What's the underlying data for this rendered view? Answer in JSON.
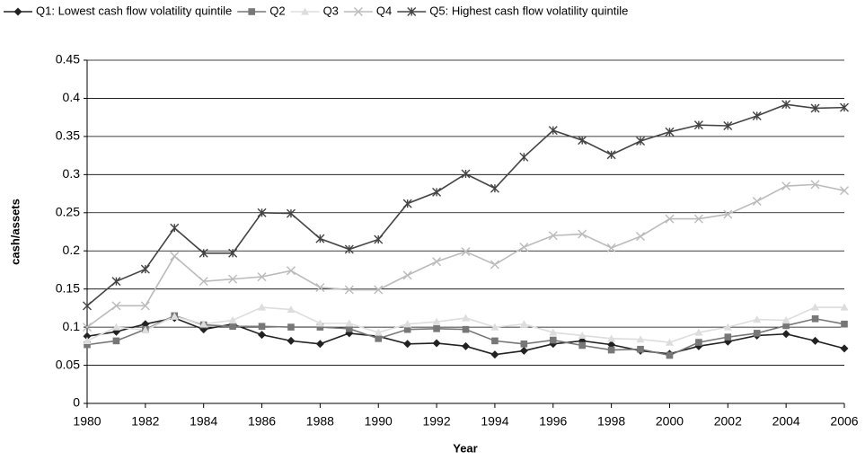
{
  "chart_data": {
    "type": "line",
    "x_label": "Year",
    "y_label": "cash/assets",
    "x": [
      1980,
      1981,
      1982,
      1983,
      1984,
      1985,
      1986,
      1987,
      1988,
      1989,
      1990,
      1991,
      1992,
      1993,
      1994,
      1995,
      1996,
      1997,
      1998,
      1999,
      2000,
      2001,
      2002,
      2003,
      2004,
      2005,
      2006
    ],
    "xlim": [
      1980,
      2006
    ],
    "xticks": [
      1980,
      1982,
      1984,
      1986,
      1988,
      1990,
      1992,
      1994,
      1996,
      1998,
      2000,
      2002,
      2004,
      2006
    ],
    "ylim": [
      0,
      0.45
    ],
    "yticks": [
      0,
      0.05,
      0.1,
      0.15,
      0.2,
      0.25,
      0.3,
      0.35,
      0.4,
      0.45
    ],
    "grid": true,
    "legend": "top",
    "series": [
      {
        "name": "Q1: Lowest cash flow volatility quintile",
        "color": "#222222",
        "marker": "diamond",
        "values": [
          0.088,
          0.094,
          0.104,
          0.112,
          0.097,
          0.104,
          0.09,
          0.082,
          0.078,
          0.092,
          0.088,
          0.078,
          0.079,
          0.075,
          0.064,
          0.069,
          0.078,
          0.082,
          0.077,
          0.069,
          0.065,
          0.075,
          0.081,
          0.089,
          0.091,
          0.082,
          0.072
        ]
      },
      {
        "name": "Q2",
        "color": "#777777",
        "marker": "square",
        "values": [
          0.077,
          0.082,
          0.097,
          0.115,
          0.103,
          0.101,
          0.101,
          0.1,
          0.1,
          0.098,
          0.085,
          0.097,
          0.098,
          0.097,
          0.082,
          0.078,
          0.083,
          0.076,
          0.07,
          0.071,
          0.063,
          0.08,
          0.087,
          0.092,
          0.102,
          0.111,
          0.104
        ]
      },
      {
        "name": "Q3",
        "color": "#dddddd",
        "marker": "triangle",
        "values": [
          0.082,
          0.1,
          0.096,
          0.114,
          0.104,
          0.109,
          0.126,
          0.123,
          0.105,
          0.105,
          0.093,
          0.104,
          0.107,
          0.112,
          0.1,
          0.104,
          0.093,
          0.089,
          0.085,
          0.084,
          0.08,
          0.093,
          0.1,
          0.11,
          0.109,
          0.126,
          0.126
        ]
      },
      {
        "name": "Q4",
        "color": "#bbbbbb",
        "marker": "x",
        "values": [
          0.1,
          0.128,
          0.128,
          0.193,
          0.16,
          0.163,
          0.166,
          0.174,
          0.152,
          0.149,
          0.149,
          0.168,
          0.186,
          0.199,
          0.182,
          0.205,
          0.22,
          0.222,
          0.204,
          0.219,
          0.242,
          0.242,
          0.248,
          0.265,
          0.285,
          0.287,
          0.279
        ]
      },
      {
        "name": "Q5: Highest cash flow volatility quintile",
        "color": "#444444",
        "marker": "star",
        "values": [
          0.128,
          0.16,
          0.176,
          0.23,
          0.197,
          0.197,
          0.25,
          0.249,
          0.216,
          0.202,
          0.215,
          0.262,
          0.277,
          0.301,
          0.282,
          0.323,
          0.358,
          0.345,
          0.326,
          0.344,
          0.356,
          0.365,
          0.364,
          0.377,
          0.392,
          0.387,
          0.388
        ]
      }
    ]
  }
}
